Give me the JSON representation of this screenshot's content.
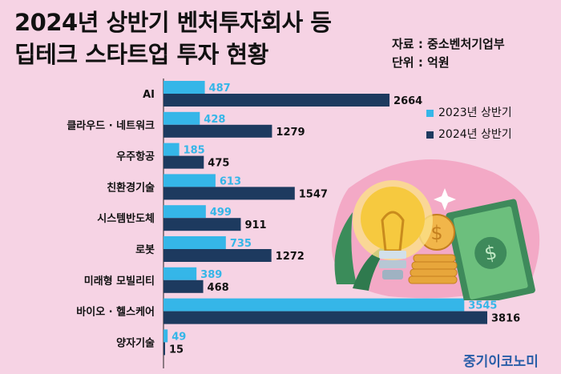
{
  "header": {
    "title_line1": "2024년 상반기 벤처투자회사 등",
    "title_line2": "딥테크 스타트업 투자 현황",
    "source": "자료 : 중소벤처기업부",
    "unit": "단위 : 억원"
  },
  "brand": "중기이코노미",
  "colors": {
    "series_2023": "#35b6e8",
    "series_2024": "#1d3a5f",
    "background": "#f6d3e4"
  },
  "chart_data": {
    "type": "bar",
    "orientation": "horizontal",
    "categories": [
      "AI",
      "클라우드 · 네트워크",
      "우주항공",
      "친환경기술",
      "시스템반도체",
      "로봇",
      "미래형 모빌리티",
      "바이오 · 헬스케어",
      "양자기술"
    ],
    "series": [
      {
        "name": "2023년 상반기",
        "values": [
          487,
          428,
          185,
          613,
          499,
          735,
          389,
          3545,
          49
        ]
      },
      {
        "name": "2024년 상반기",
        "values": [
          2664,
          1279,
          475,
          1547,
          911,
          1272,
          468,
          3816,
          15
        ]
      }
    ],
    "title": "2024년 상반기 벤처투자회사 등 딥테크 스타트업 투자 현황",
    "legend_position": "top-right",
    "xlim": [
      0,
      3816
    ],
    "grid": false
  }
}
